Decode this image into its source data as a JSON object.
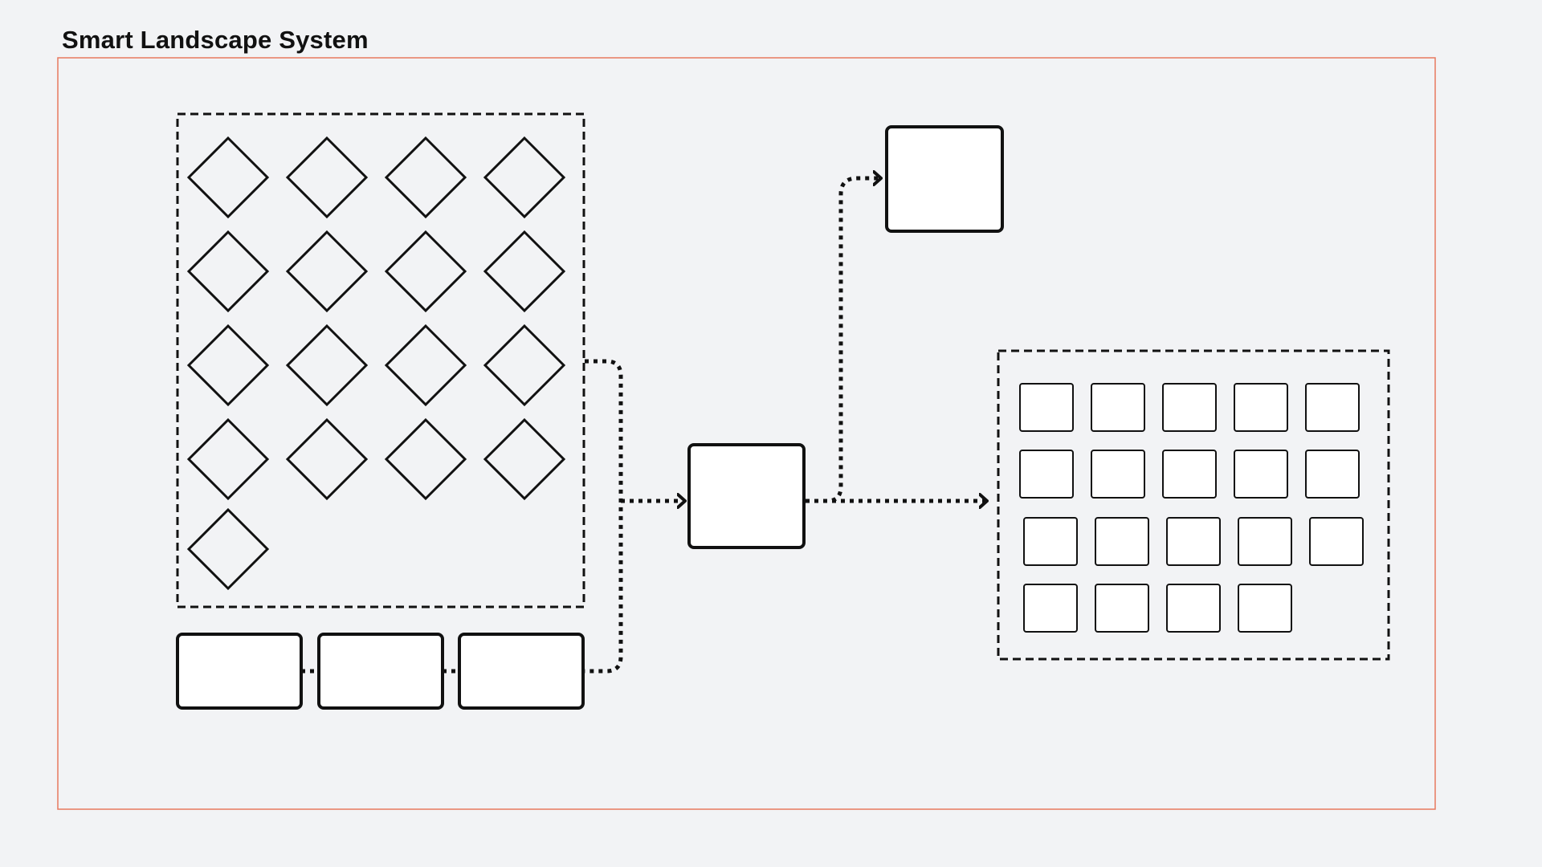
{
  "diagram": {
    "title": "Smart Landscape System",
    "colors": {
      "background": "#f2f3f5",
      "frame_border": "#e8795f",
      "stroke": "#111111",
      "node_fill": "#ffffff"
    }
  }
}
